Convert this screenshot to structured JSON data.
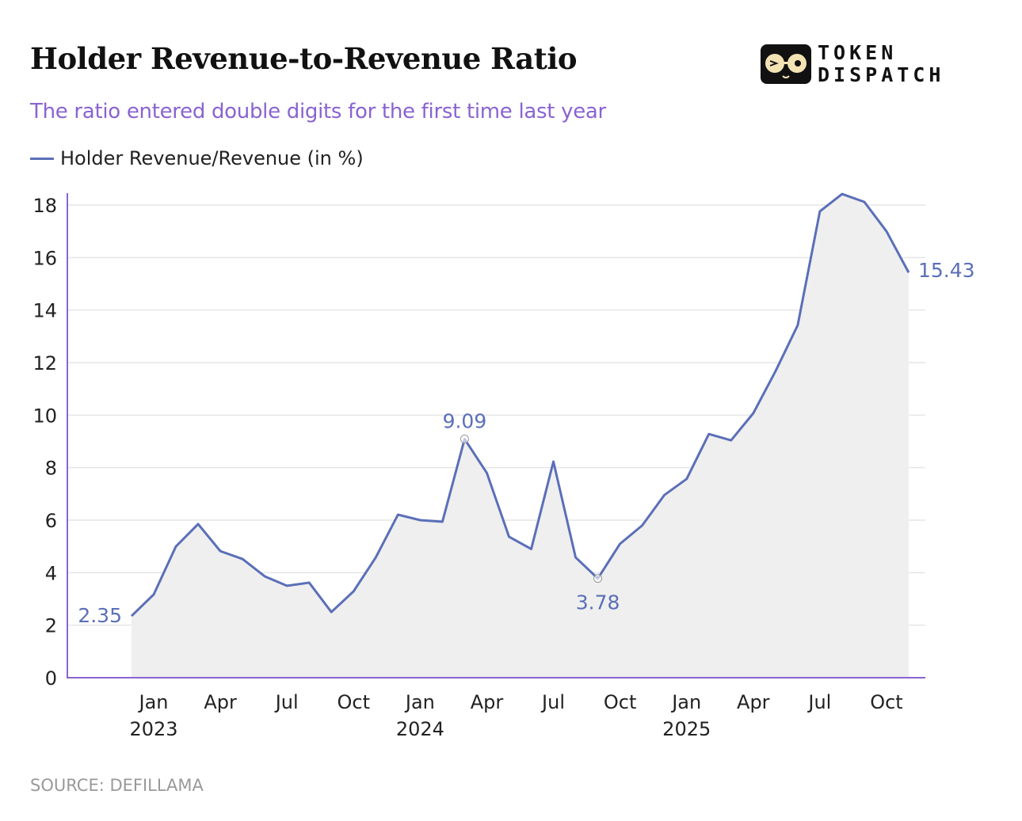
{
  "header": {
    "title": "Holder Revenue-to-Revenue Ratio",
    "subtitle": "The ratio entered double digits for the first time last year"
  },
  "logo": {
    "line1": "TOKEN",
    "line2": "DISPATCH"
  },
  "footer": {
    "source": "SOURCE: DEFILLAMA"
  },
  "chart_data": {
    "type": "area",
    "title": "Holder Revenue-to-Revenue Ratio",
    "subtitle": "The ratio entered double digits for the first time last year",
    "xlabel": "",
    "ylabel": "",
    "ylim": [
      0,
      18
    ],
    "yticks": [
      0,
      2,
      4,
      6,
      8,
      10,
      12,
      14,
      16,
      18
    ],
    "grid": true,
    "legend_placement": "top-left",
    "x_tick_labels": [
      {
        "month": "2023-01",
        "label": "Jan",
        "sub": "2023"
      },
      {
        "month": "2023-04",
        "label": "Apr",
        "sub": ""
      },
      {
        "month": "2023-07",
        "label": "Jul",
        "sub": ""
      },
      {
        "month": "2023-10",
        "label": "Oct",
        "sub": ""
      },
      {
        "month": "2024-01",
        "label": "Jan",
        "sub": "2024"
      },
      {
        "month": "2024-04",
        "label": "Apr",
        "sub": ""
      },
      {
        "month": "2024-07",
        "label": "Jul",
        "sub": ""
      },
      {
        "month": "2024-10",
        "label": "Oct",
        "sub": ""
      },
      {
        "month": "2025-01",
        "label": "Jan",
        "sub": "2025"
      },
      {
        "month": "2025-04",
        "label": "Apr",
        "sub": ""
      },
      {
        "month": "2025-07",
        "label": "Jul",
        "sub": ""
      },
      {
        "month": "2025-10",
        "label": "Oct",
        "sub": ""
      }
    ],
    "series": [
      {
        "name": "Holder Revenue/Revenue (in %)",
        "color": "#5b6fb8",
        "x": [
          "2022-12",
          "2023-01",
          "2023-02",
          "2023-03",
          "2023-04",
          "2023-05",
          "2023-06",
          "2023-07",
          "2023-08",
          "2023-09",
          "2023-10",
          "2023-11",
          "2023-12",
          "2024-01",
          "2024-02",
          "2024-03",
          "2024-04",
          "2024-05",
          "2024-06",
          "2024-07",
          "2024-08",
          "2024-09",
          "2024-10",
          "2024-11",
          "2024-12",
          "2025-01",
          "2025-02",
          "2025-03",
          "2025-04",
          "2025-05",
          "2025-06",
          "2025-07",
          "2025-08",
          "2025-09",
          "2025-10",
          "2025-11"
        ],
        "values": [
          2.35,
          3.17,
          5.0,
          5.85,
          4.82,
          4.52,
          3.86,
          3.5,
          3.62,
          2.5,
          3.29,
          4.58,
          6.21,
          6.0,
          5.94,
          9.09,
          7.8,
          5.37,
          4.9,
          8.23,
          4.58,
          3.78,
          5.1,
          5.8,
          6.96,
          7.57,
          9.28,
          9.04,
          10.07,
          11.67,
          13.42,
          17.76,
          18.42,
          18.12,
          17.0,
          15.43
        ]
      }
    ],
    "annotations": [
      {
        "month": "2022-12",
        "label": "2.35",
        "marker": false
      },
      {
        "month": "2024-03",
        "label": "9.09",
        "marker": true
      },
      {
        "month": "2024-09",
        "label": "3.78",
        "marker": true
      },
      {
        "month": "2025-11",
        "label": "15.43",
        "marker": false
      }
    ]
  }
}
